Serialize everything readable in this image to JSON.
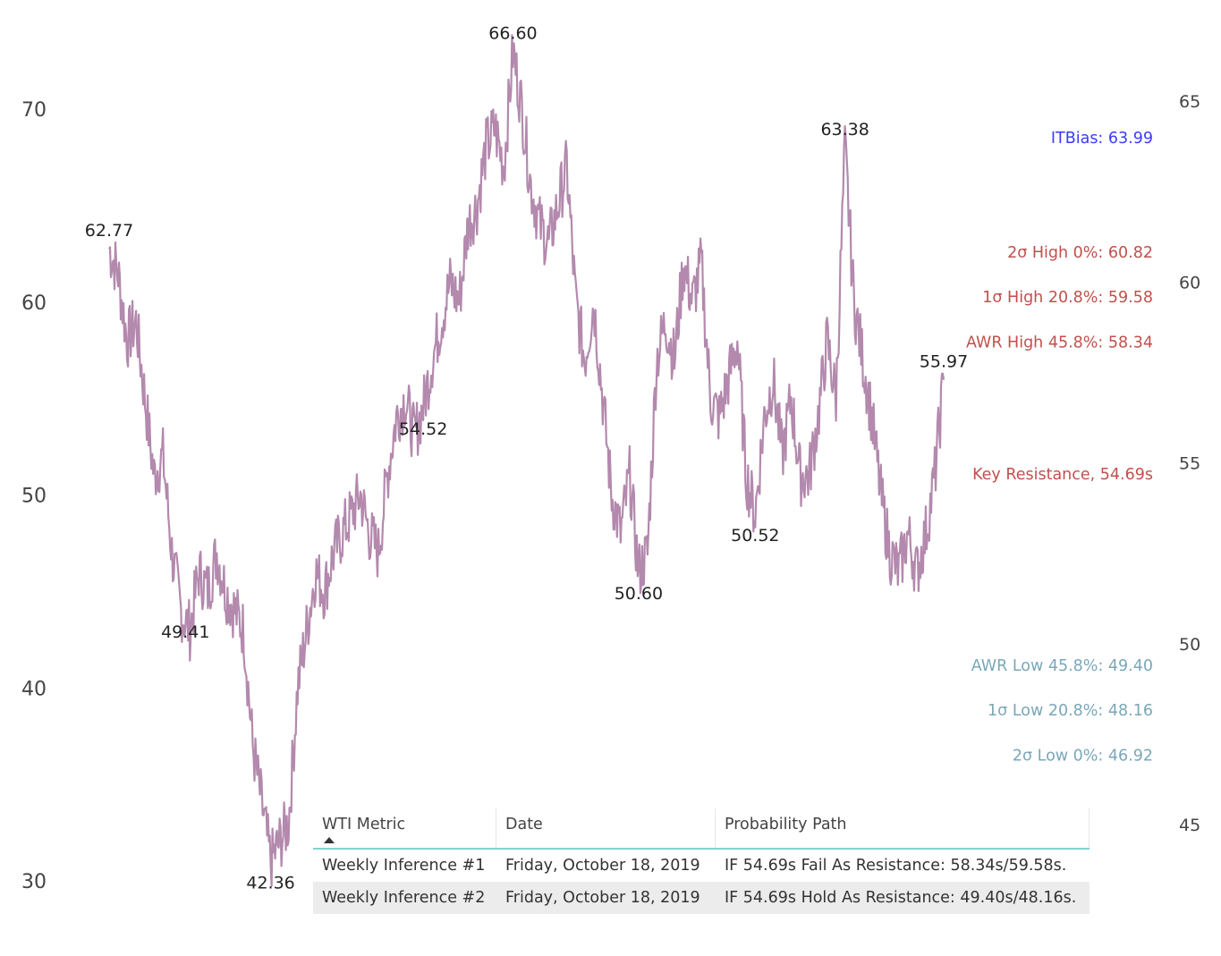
{
  "chart_data": {
    "type": "line",
    "series": [
      {
        "color": "#b389ad",
        "points": [
          [
            "0",
            62.77
          ],
          [
            "1",
            61.5
          ],
          [
            "2",
            58
          ],
          [
            "3",
            59
          ],
          [
            "4",
            55
          ],
          [
            "5",
            51
          ],
          [
            "6",
            52
          ],
          [
            "7",
            47
          ],
          [
            "8",
            44
          ],
          [
            "9",
            43
          ],
          [
            "10",
            46
          ],
          [
            "11",
            45
          ],
          [
            "12",
            47
          ],
          [
            "13",
            45
          ],
          [
            "14",
            44
          ],
          [
            "15",
            43
          ],
          [
            "16",
            37
          ],
          [
            "17",
            34
          ],
          [
            "18",
            31
          ],
          [
            "19",
            32
          ],
          [
            "20",
            33
          ],
          [
            "21",
            40
          ],
          [
            "22",
            43
          ],
          [
            "23",
            46
          ],
          [
            "24",
            45
          ],
          [
            "25",
            47
          ],
          [
            "26",
            48
          ],
          [
            "27",
            49
          ],
          [
            "28",
            50
          ],
          [
            "29",
            48
          ],
          [
            "30",
            47
          ],
          [
            "31",
            51
          ],
          [
            "32",
            54
          ],
          [
            "33",
            55
          ],
          [
            "34",
            53
          ],
          [
            "35",
            54.52
          ],
          [
            "36",
            57
          ],
          [
            "37",
            59
          ],
          [
            "38",
            61
          ],
          [
            "39",
            60
          ],
          [
            "40",
            64
          ],
          [
            "41",
            65
          ],
          [
            "42",
            68
          ],
          [
            "43",
            69
          ],
          [
            "44",
            67
          ],
          [
            "45",
            73
          ],
          [
            "46",
            70
          ],
          [
            "47",
            66
          ],
          [
            "48",
            64
          ],
          [
            "49",
            63
          ],
          [
            "50",
            65
          ],
          [
            "51",
            67
          ],
          [
            "52",
            60
          ],
          [
            "53",
            57
          ],
          [
            "54",
            60
          ],
          [
            "55",
            55
          ],
          [
            "56",
            50
          ],
          [
            "57",
            48
          ],
          [
            "58",
            51
          ],
          [
            "59",
            46
          ],
          [
            "60",
            47
          ],
          [
            "61",
            57
          ],
          [
            "62",
            59
          ],
          [
            "63",
            57
          ],
          [
            "64",
            62
          ],
          [
            "65",
            60
          ],
          [
            "66",
            62
          ],
          [
            "67",
            55
          ],
          [
            "68",
            54
          ],
          [
            "69",
            56
          ],
          [
            "70",
            58
          ],
          [
            "71",
            51
          ],
          [
            "72",
            49
          ],
          [
            "73",
            54
          ],
          [
            "74",
            56
          ],
          [
            "75",
            52
          ],
          [
            "76",
            55
          ],
          [
            "77",
            51
          ],
          [
            "78",
            51
          ],
          [
            "79",
            54
          ],
          [
            "80",
            58
          ],
          [
            "81",
            55
          ],
          [
            "82",
            68
          ],
          [
            "83",
            60
          ],
          [
            "84",
            57
          ],
          [
            "85",
            54
          ],
          [
            "86",
            50
          ],
          [
            "87",
            47
          ],
          [
            "88",
            46
          ],
          [
            "89",
            48
          ],
          [
            "90",
            46
          ],
          [
            "91",
            48
          ],
          [
            "92",
            51
          ],
          [
            "93",
            55.97
          ]
        ]
      }
    ],
    "y_left": {
      "ticks": [
        "30",
        "40",
        "50",
        "60",
        "70"
      ],
      "range": [
        27,
        75.5
      ]
    },
    "y_right": {
      "ticks": [
        "45",
        "50",
        "55",
        "60",
        "65"
      ],
      "range": [
        42.5,
        66.4
      ]
    },
    "peak_labels": [
      {
        "text": "62.77",
        "x": "0",
        "y": 62.77
      },
      {
        "text": "49.41",
        "x": "8.5",
        "y": 44
      },
      {
        "text": "42.36",
        "x": "18",
        "y": 31
      },
      {
        "text": "54.52",
        "x": "35",
        "y": 54.52
      },
      {
        "text": "66.60",
        "x": "45",
        "y": 73
      },
      {
        "text": "50.60",
        "x": "59",
        "y": 46
      },
      {
        "text": "50.52",
        "x": "72",
        "y": 49
      },
      {
        "text": "63.38",
        "x": "82",
        "y": 68
      },
      {
        "text": "55.97",
        "x": "93",
        "y": 55.97
      }
    ],
    "levels": [
      {
        "label": "ITBias: 63.99",
        "value": 63.99,
        "color": "#3b3bff"
      },
      {
        "label": "2σ High 0%: 60.82",
        "value": 60.82,
        "color": "#c0504d"
      },
      {
        "label": "1σ High 20.8%: 59.58",
        "value": 59.58,
        "color": "#c0504d"
      },
      {
        "label": "AWR High 45.8%: 58.34",
        "value": 58.34,
        "color": "#c0504d"
      },
      {
        "label": "Key Resistance, 54.69s",
        "value": 54.69,
        "color": "#c0504d"
      },
      {
        "label": "AWR Low 45.8%: 49.40",
        "value": 49.4,
        "color": "#7aa7b8"
      },
      {
        "label": "1σ Low 20.8%: 48.16",
        "value": 48.16,
        "color": "#7aa7b8"
      },
      {
        "label": "2σ Low 0%: 46.92",
        "value": 46.92,
        "color": "#7aa7b8"
      }
    ]
  },
  "table": {
    "headers": [
      "WTI Metric",
      "Date",
      "Probability Path"
    ],
    "rows": [
      [
        "Weekly Inference #1",
        "Friday, October 18, 2019",
        "IF 54.69s Fail As Resistance: 58.34s/59.58s."
      ],
      [
        "Weekly Inference #2",
        "Friday, October 18, 2019",
        "IF 54.69s Hold As Resistance: 49.40s/48.16s."
      ]
    ]
  }
}
